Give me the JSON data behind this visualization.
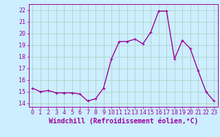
{
  "x": [
    0,
    1,
    2,
    3,
    4,
    5,
    6,
    7,
    8,
    9,
    10,
    11,
    12,
    13,
    14,
    15,
    16,
    17,
    18,
    19,
    20,
    21,
    22,
    23
  ],
  "y": [
    15.3,
    15.0,
    15.1,
    14.9,
    14.9,
    14.9,
    14.8,
    14.2,
    14.4,
    15.3,
    17.8,
    19.3,
    19.3,
    19.5,
    19.1,
    20.1,
    21.9,
    21.9,
    17.8,
    19.4,
    18.7,
    16.8,
    15.0,
    14.2
  ],
  "line_color": "#990099",
  "marker": "+",
  "marker_size": 3,
  "xlabel": "Windchill (Refroidissement éolien,°C)",
  "xlabel_fontsize": 7,
  "xtick_labels": [
    "0",
    "1",
    "2",
    "3",
    "4",
    "5",
    "6",
    "7",
    "8",
    "9",
    "10",
    "11",
    "12",
    "13",
    "14",
    "15",
    "16",
    "17",
    "18",
    "19",
    "20",
    "21",
    "22",
    "23"
  ],
  "ytick_labels": [
    "14",
    "15",
    "16",
    "17",
    "18",
    "19",
    "20",
    "21",
    "22"
  ],
  "ylim": [
    13.7,
    22.5
  ],
  "xlim": [
    -0.5,
    23.5
  ],
  "bg_color": "#cceeff",
  "grid_color": "#aaccbb",
  "tick_color": "#990099",
  "label_color": "#990099",
  "tick_fontsize": 6,
  "linewidth": 1.0,
  "marker_edge_width": 0.8
}
